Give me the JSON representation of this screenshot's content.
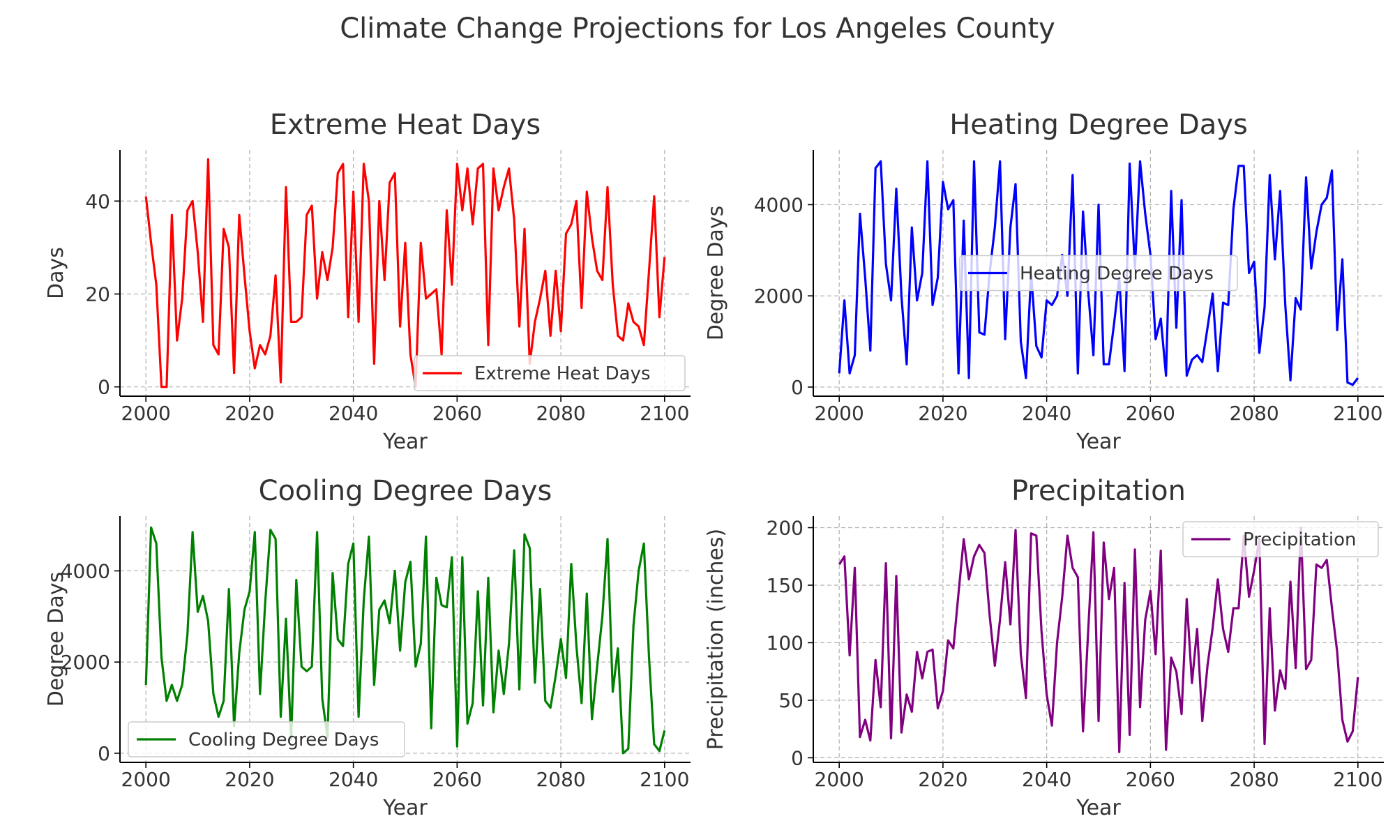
{
  "suptitle": "Climate Change Projections for Los Angeles County",
  "chart_data": [
    {
      "type": "line",
      "title": "Extreme Heat Days",
      "xlabel": "Year",
      "ylabel": "Days",
      "xlim": [
        1995,
        2105
      ],
      "ylim": [
        -2,
        51
      ],
      "xticks": [
        2000,
        2020,
        2040,
        2060,
        2080,
        2100
      ],
      "yticks": [
        0,
        20,
        40
      ],
      "grid": true,
      "legend": "lower right",
      "x_start": 2000,
      "x_step": 1,
      "series": [
        {
          "name": "Extreme Heat Days",
          "color": "#ff0000",
          "values": [
            41,
            31,
            22,
            0,
            0,
            37,
            10,
            19,
            38,
            40,
            29,
            14,
            49,
            9,
            7,
            34,
            30,
            3,
            37,
            24,
            12,
            4,
            9,
            7,
            11,
            24,
            1,
            43,
            14,
            14,
            15,
            37,
            39,
            19,
            29,
            23,
            30,
            46,
            48,
            15,
            42,
            14,
            48,
            40,
            5,
            40,
            23,
            44,
            46,
            13,
            31,
            7,
            0,
            31,
            19,
            20,
            21,
            7,
            38,
            22,
            48,
            38,
            47,
            35,
            47,
            48,
            9,
            47,
            38,
            43,
            47,
            36,
            13,
            34,
            5,
            14,
            19,
            25,
            11,
            25,
            12,
            33,
            35,
            40,
            17,
            42,
            32,
            25,
            23,
            43,
            22,
            11,
            10,
            18,
            14,
            13,
            9,
            25,
            41,
            15,
            28
          ]
        }
      ]
    },
    {
      "type": "line",
      "title": "Heating Degree Days",
      "xlabel": "Year",
      "ylabel": "Degree Days",
      "xlim": [
        1995,
        2105
      ],
      "ylim": [
        -200,
        5200
      ],
      "xticks": [
        2000,
        2020,
        2040,
        2060,
        2080,
        2100
      ],
      "yticks": [
        0,
        2000,
        4000
      ],
      "grid": true,
      "legend": "center",
      "x_start": 2000,
      "x_step": 1,
      "series": [
        {
          "name": "Heating Degree Days",
          "color": "#0000ff",
          "values": [
            300,
            1900,
            300,
            700,
            3800,
            2400,
            800,
            4800,
            4950,
            2700,
            1900,
            4350,
            2000,
            500,
            3500,
            1900,
            2500,
            4950,
            1800,
            2400,
            4500,
            3900,
            4100,
            300,
            3650,
            200,
            4950,
            1200,
            1150,
            2500,
            3500,
            4950,
            1050,
            3500,
            4450,
            1000,
            200,
            2500,
            900,
            650,
            1900,
            1800,
            2000,
            2900,
            2000,
            4650,
            300,
            3850,
            2100,
            700,
            4000,
            500,
            500,
            1400,
            2400,
            350,
            4900,
            2600,
            4950,
            3800,
            2900,
            1050,
            1500,
            250,
            4300,
            1300,
            4100,
            250,
            600,
            700,
            550,
            1300,
            2050,
            350,
            1850,
            1800,
            3900,
            4850,
            4850,
            2500,
            2750,
            750,
            1750,
            4650,
            2800,
            4300,
            1800,
            150,
            1950,
            1700,
            4600,
            2600,
            3400,
            4000,
            4150,
            4750,
            1250,
            2800,
            100,
            50,
            200
          ]
        }
      ]
    },
    {
      "type": "line",
      "title": "Cooling Degree Days",
      "xlabel": "Year",
      "ylabel": "Degree Days",
      "xlim": [
        1995,
        2105
      ],
      "ylim": [
        -200,
        5200
      ],
      "xticks": [
        2000,
        2020,
        2040,
        2060,
        2080,
        2100
      ],
      "yticks": [
        0,
        2000,
        4000
      ],
      "grid": true,
      "legend": "lower left",
      "x_start": 2000,
      "x_step": 1,
      "series": [
        {
          "name": "Cooling Degree Days",
          "color": "#008000",
          "values": [
            1500,
            4950,
            4600,
            2100,
            1150,
            1500,
            1150,
            1500,
            2600,
            4850,
            3100,
            3450,
            2900,
            1300,
            800,
            1150,
            3600,
            600,
            2200,
            3150,
            3550,
            4850,
            1300,
            3300,
            4900,
            4700,
            800,
            2950,
            300,
            3800,
            1900,
            1800,
            1900,
            4850,
            1200,
            350,
            3950,
            2500,
            2350,
            4150,
            4600,
            800,
            3350,
            4750,
            1500,
            3150,
            3350,
            2850,
            4000,
            2250,
            3750,
            4200,
            1900,
            2400,
            4750,
            550,
            3850,
            3250,
            3200,
            4300,
            150,
            4300,
            650,
            1100,
            3550,
            1050,
            3850,
            900,
            2250,
            1300,
            2400,
            4450,
            1400,
            4800,
            4500,
            1550,
            3600,
            1150,
            1000,
            1700,
            2500,
            1650,
            4150,
            2350,
            1100,
            3500,
            750,
            1900,
            3000,
            4700,
            1350,
            2300,
            0,
            100,
            2800,
            4000,
            4600,
            2100,
            200,
            50,
            500
          ]
        }
      ]
    },
    {
      "type": "line",
      "title": "Precipitation",
      "xlabel": "Year",
      "ylabel": "Precipitation (inches)",
      "xlim": [
        1995,
        2105
      ],
      "ylim": [
        -4,
        210
      ],
      "xticks": [
        2000,
        2020,
        2040,
        2060,
        2080,
        2100
      ],
      "yticks": [
        0,
        50,
        100,
        150,
        200
      ],
      "grid": true,
      "legend": "upper right",
      "x_start": 2000,
      "x_step": 1,
      "series": [
        {
          "name": "Precipitation",
          "color": "#800080",
          "values": [
            168,
            175,
            89,
            165,
            18,
            33,
            15,
            85,
            44,
            169,
            17,
            158,
            22,
            55,
            40,
            92,
            69,
            92,
            94,
            43,
            58,
            102,
            95,
            143,
            190,
            155,
            175,
            185,
            178,
            124,
            80,
            120,
            170,
            116,
            198,
            90,
            52,
            195,
            193,
            110,
            55,
            28,
            100,
            140,
            193,
            165,
            157,
            23,
            110,
            196,
            32,
            187,
            138,
            165,
            5,
            152,
            20,
            181,
            44,
            120,
            145,
            90,
            180,
            7,
            87,
            75,
            38,
            138,
            65,
            112,
            32,
            80,
            113,
            155,
            112,
            92,
            130,
            130,
            193,
            140,
            163,
            190,
            12,
            130,
            41,
            76,
            60,
            153,
            78,
            200,
            77,
            85,
            168,
            165,
            172,
            130,
            92,
            33,
            14,
            23,
            70
          ]
        }
      ]
    }
  ]
}
